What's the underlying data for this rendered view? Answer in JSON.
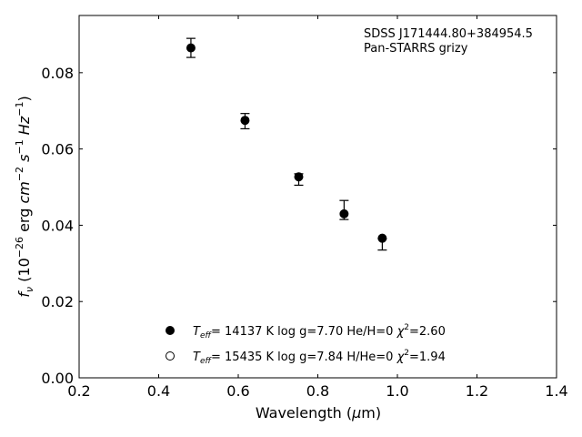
{
  "chart_data": {
    "type": "scatter",
    "annotation": [
      "SDSS J171444.80+384954.5",
      "Pan-STARRS grizy"
    ],
    "xlabel": "Wavelength (μm)",
    "ylabel": "fν (10⁻²⁶ erg cm⁻² s⁻¹ Hz⁻¹)",
    "xlim": [
      0.2,
      1.4
    ],
    "ylim": [
      0.0,
      0.095
    ],
    "xticks": [
      0.2,
      0.4,
      0.6,
      0.8,
      1.0,
      1.2,
      1.4
    ],
    "xtick_labels": [
      "0.2",
      "0.4",
      "0.6",
      "0.8",
      "1.0",
      "1.2",
      "1.4"
    ],
    "yticks": [
      0.0,
      0.02,
      0.04,
      0.06,
      0.08
    ],
    "ytick_labels": [
      "0.00",
      "0.02",
      "0.04",
      "0.06",
      "0.08"
    ],
    "grid": false,
    "legend_position": "lower-center",
    "observed": {
      "x": [
        0.481,
        0.617,
        0.752,
        0.866,
        0.962
      ],
      "y": [
        0.0865,
        0.0673,
        0.052,
        0.044,
        0.035
      ],
      "yerr": [
        0.0025,
        0.002,
        0.0015,
        0.0025,
        0.0015
      ]
    },
    "series": [
      {
        "marker": "filled-circle",
        "label_pre": "= 14137 K  log g=7.70  He/H=0  ",
        "chi2": "=2.60",
        "x": [
          0.481,
          0.617,
          0.752,
          0.866,
          0.962
        ],
        "y": [
          0.0865,
          0.0675,
          0.0527,
          0.043,
          0.0366
        ]
      },
      {
        "marker": "open-circle",
        "label_pre": "= 15435 K  log g=7.84  H/He=0  ",
        "chi2": "=1.94",
        "x": [],
        "y": []
      }
    ]
  }
}
